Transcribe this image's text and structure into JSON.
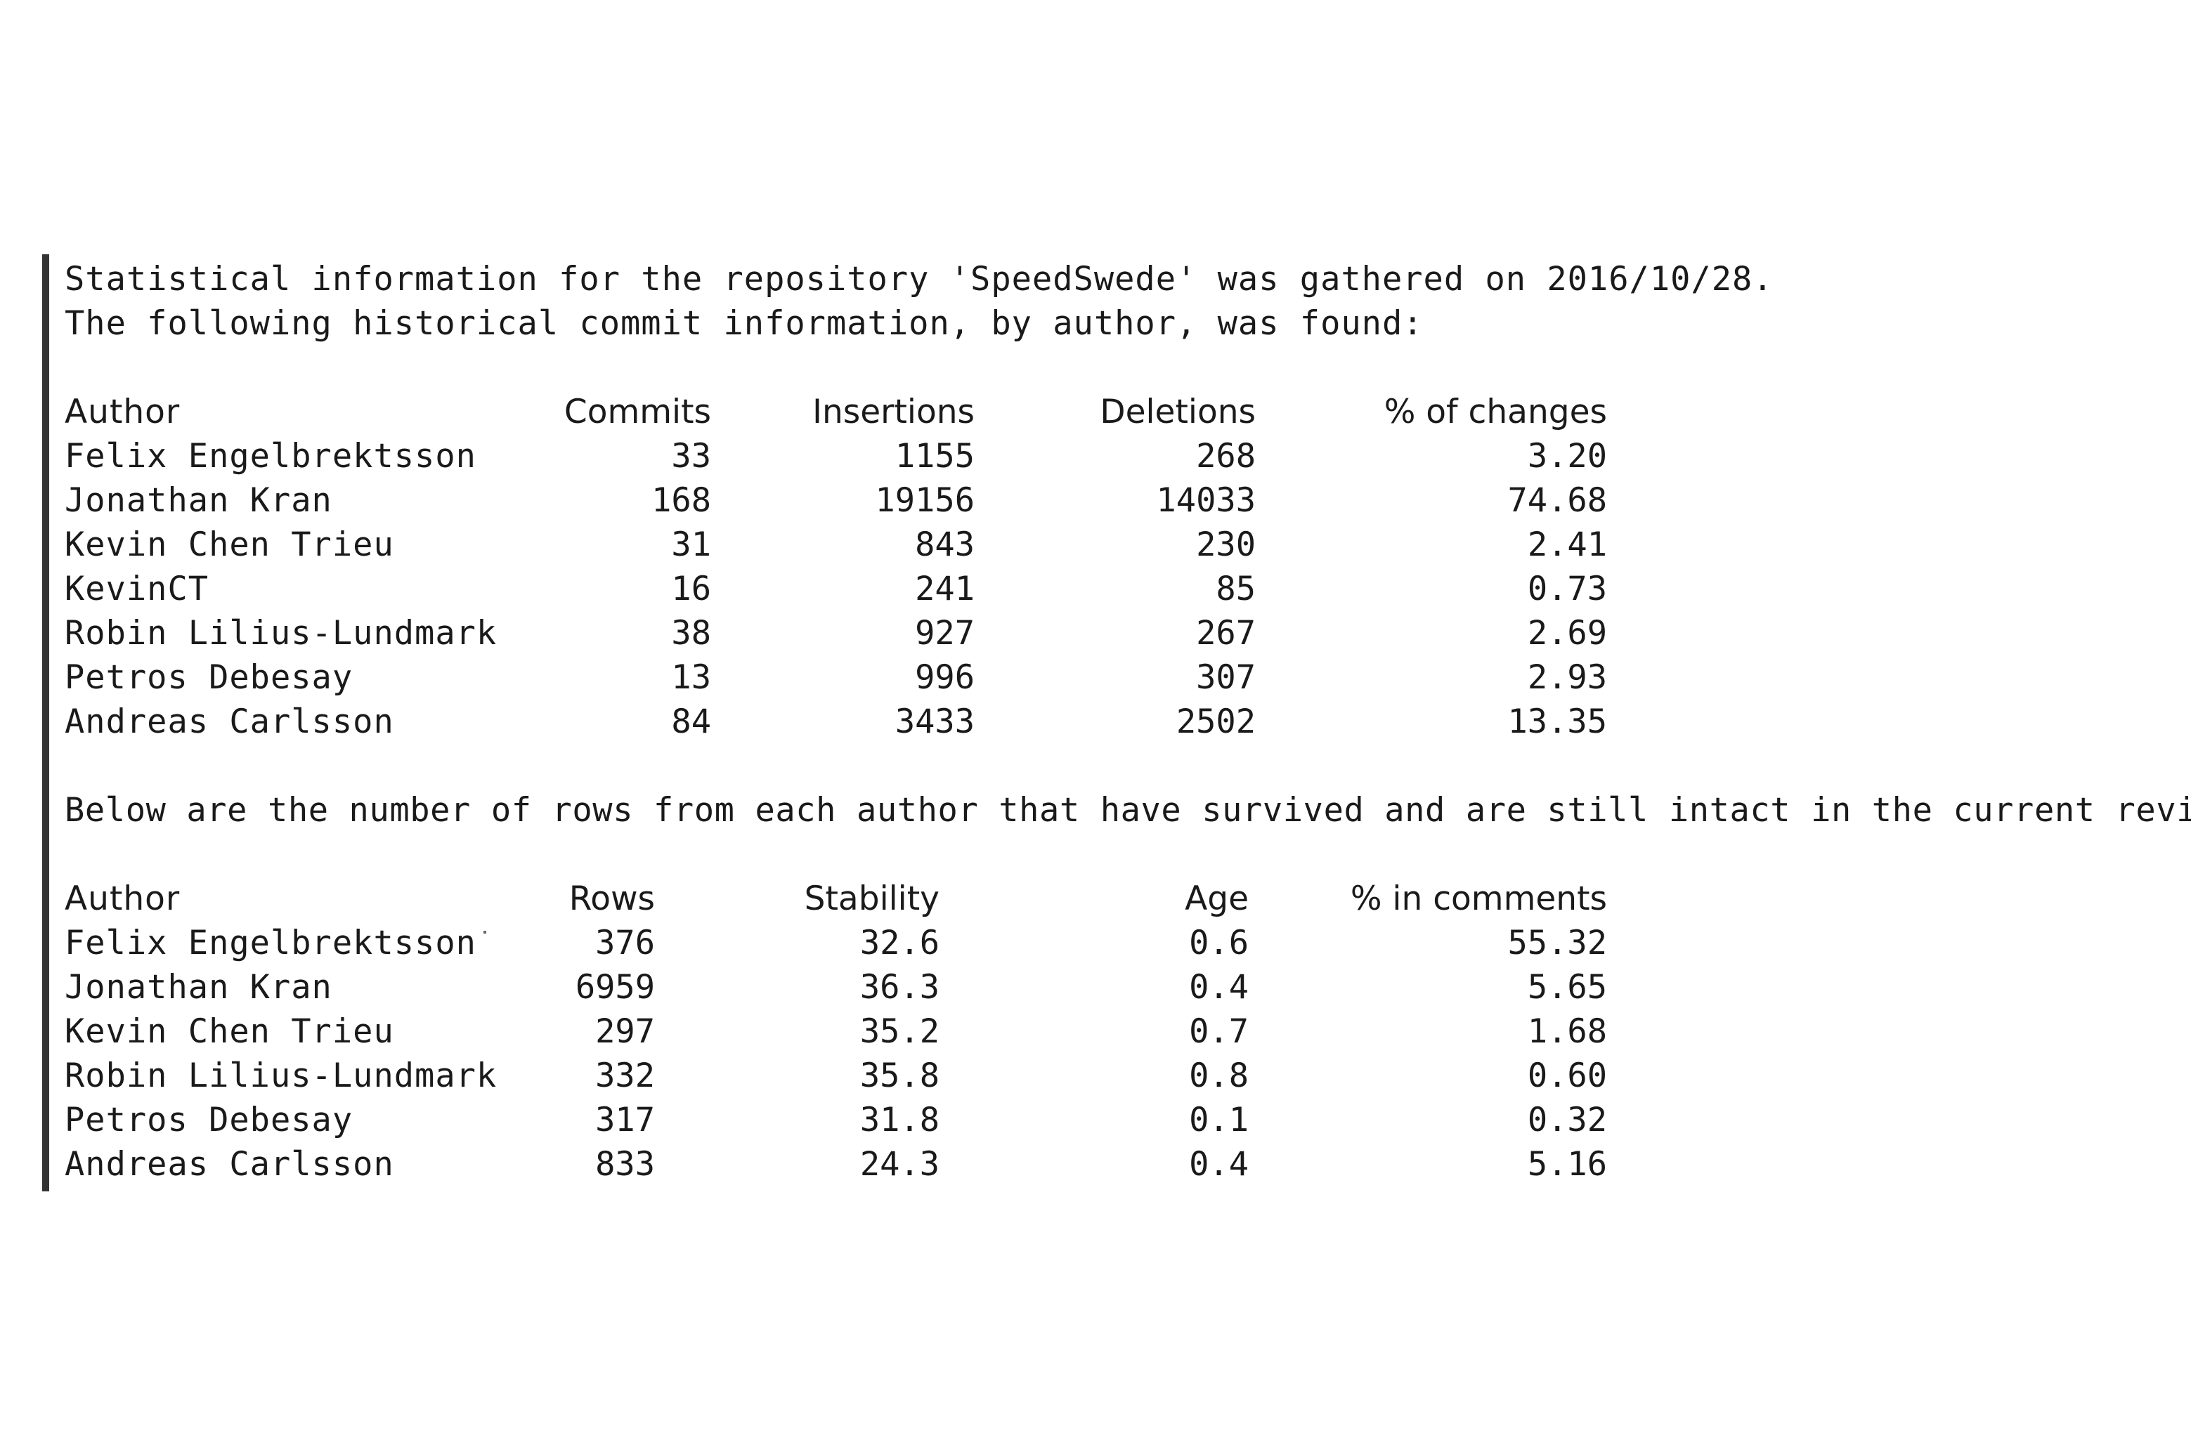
{
  "intro_line_1": "Statistical information for the repository 'SpeedSwede' was gathered on 2016/10/28.",
  "intro_line_2": "The following historical commit information, by author, was found:",
  "commits_table": {
    "headers": [
      "Author",
      "Commits",
      "Insertions",
      "Deletions",
      "% of changes"
    ],
    "rows": [
      [
        "Felix Engelbrektsson",
        "33",
        "1155",
        "268",
        "3.20"
      ],
      [
        "Jonathan Kran",
        "168",
        "19156",
        "14033",
        "74.68"
      ],
      [
        "Kevin Chen Trieu",
        "31",
        "843",
        "230",
        "2.41"
      ],
      [
        "KevinCT",
        "16",
        "241",
        "85",
        "0.73"
      ],
      [
        "Robin Lilius-Lundmark",
        "38",
        "927",
        "267",
        "2.69"
      ],
      [
        "Petros Debesay",
        "13",
        "996",
        "307",
        "2.93"
      ],
      [
        "Andreas Carlsson",
        "84",
        "3433",
        "2502",
        "13.35"
      ]
    ]
  },
  "survival_line": "Below are the number of rows from each author that have survived and are still intact in the current revision:",
  "rows_table": {
    "headers": [
      "Author",
      "Rows",
      "Stability",
      "Age",
      "% in comments"
    ],
    "rows": [
      [
        "Felix Engelbrektsson",
        "376",
        "32.6",
        "0.6",
        "55.32"
      ],
      [
        "Jonathan Kran",
        "6959",
        "36.3",
        "0.4",
        "5.65"
      ],
      [
        "Kevin Chen Trieu",
        "297",
        "35.2",
        "0.7",
        "1.68"
      ],
      [
        "Robin Lilius-Lundmark",
        "332",
        "35.8",
        "0.8",
        "0.60"
      ],
      [
        "Petros Debesay",
        "317",
        "31.8",
        "0.1",
        "0.32"
      ],
      [
        "Andreas Carlsson",
        "833",
        "24.3",
        "0.4",
        "5.16"
      ]
    ]
  }
}
